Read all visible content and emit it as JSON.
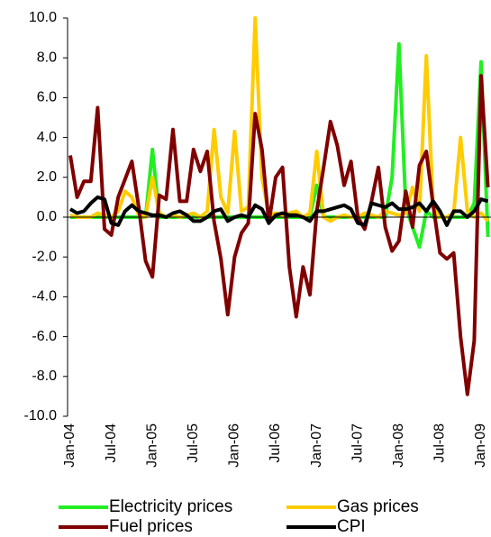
{
  "chart_data": {
    "type": "line",
    "categories": [
      "Jan-04",
      null,
      null,
      null,
      null,
      null,
      "Jul-04",
      null,
      null,
      null,
      null,
      null,
      "Jan-05",
      null,
      null,
      null,
      null,
      null,
      "Jul-05",
      null,
      null,
      null,
      null,
      null,
      "Jan-06",
      null,
      null,
      null,
      null,
      null,
      "Jul-06",
      null,
      null,
      null,
      null,
      null,
      "Jan-07",
      null,
      null,
      null,
      null,
      null,
      "Jul-07",
      null,
      null,
      null,
      null,
      null,
      "Jan-08",
      null,
      null,
      null,
      null,
      null,
      "Jul-08",
      null,
      null,
      null,
      null,
      null,
      "Jan-09",
      null
    ],
    "series": [
      {
        "name": "Electricity prices",
        "color": "#22ee22",
        "values": [
          0,
          0,
          0,
          0,
          0,
          0,
          0,
          0,
          0,
          0,
          0,
          0,
          3.4,
          0,
          0,
          0,
          0,
          0,
          0,
          0,
          0,
          0,
          0,
          0,
          0,
          0,
          0,
          0,
          0,
          0,
          0,
          0,
          0,
          0,
          0,
          0,
          1.6,
          0,
          0,
          0,
          0,
          0,
          0,
          0,
          0,
          0,
          0,
          2.0,
          8.7,
          0.5,
          -0.5,
          -1.5,
          0.3,
          0,
          0,
          0,
          0,
          0,
          0,
          0.7,
          7.8,
          -1.0
        ]
      },
      {
        "name": "Gas prices",
        "color": "#ffcc00",
        "values": [
          0.1,
          0,
          0,
          0,
          0.2,
          0.1,
          0,
          0.3,
          1.3,
          1.0,
          0.1,
          0,
          2.0,
          0.2,
          0,
          0.1,
          0,
          0.1,
          0.2,
          0,
          0.3,
          4.4,
          1.0,
          0.2,
          4.3,
          0.3,
          0.5,
          10.0,
          2.0,
          0.1,
          0.2,
          0.1,
          0.2,
          0.3,
          0,
          0.2,
          3.3,
          0,
          -0.2,
          0,
          0.1,
          0,
          0,
          0.2,
          0.1,
          0,
          0.3,
          0.2,
          0.1,
          0.2,
          1.5,
          0.3,
          8.1,
          0.5,
          0,
          0,
          0.2,
          4.0,
          0.3,
          0,
          0.2,
          -0.2
        ]
      },
      {
        "name": "Fuel prices",
        "color": "#800000",
        "values": [
          3.1,
          1.0,
          1.8,
          1.8,
          5.5,
          -0.6,
          -0.9,
          1.0,
          1.9,
          2.8,
          0.5,
          -2.2,
          -3.0,
          1.1,
          0.9,
          4.4,
          0.8,
          0.8,
          3.4,
          2.3,
          3.3,
          -0.2,
          -2.1,
          -4.9,
          -2.0,
          -0.8,
          -0.3,
          5.2,
          3.4,
          -0.3,
          2.0,
          2.5,
          -2.5,
          -5.0,
          -2.5,
          -3.9,
          0.3,
          2.5,
          4.8,
          3.6,
          1.6,
          2.8,
          0.0,
          -0.6,
          0.8,
          2.5,
          -0.5,
          -1.7,
          -1.2,
          1.3,
          -0.5,
          2.6,
          3.3,
          0.6,
          -1.8,
          -2.1,
          -1.8,
          -6.0,
          -8.9,
          -6.2,
          7.1,
          1.5
        ]
      },
      {
        "name": "CPI",
        "color": "#000000",
        "values": [
          0.4,
          0.2,
          0.3,
          0.7,
          1.0,
          0.9,
          -0.3,
          -0.4,
          0.3,
          0.6,
          0.3,
          0.2,
          0.1,
          0.1,
          0.0,
          0.2,
          0.3,
          0.1,
          -0.2,
          -0.2,
          0.0,
          0.3,
          0.4,
          -0.2,
          0.0,
          0.1,
          0.0,
          0.6,
          0.4,
          -0.3,
          0.1,
          0.2,
          0.1,
          0.1,
          0.0,
          -0.2,
          0.3,
          0.3,
          0.4,
          0.5,
          0.6,
          0.4,
          -0.3,
          -0.4,
          0.7,
          0.6,
          0.5,
          0.7,
          0.4,
          0.4,
          0.5,
          0.7,
          0.3,
          0.8,
          0.3,
          -0.4,
          0.3,
          0.3,
          0.0,
          0.3,
          0.9,
          0.8
        ]
      }
    ],
    "ylim": [
      -10,
      10
    ],
    "yticks": [
      {
        "value": -10,
        "label": "-10.0"
      },
      {
        "value": -8,
        "label": "-8.0"
      },
      {
        "value": -6,
        "label": "-6.0"
      },
      {
        "value": -4,
        "label": "-4.0"
      },
      {
        "value": -2,
        "label": "-2.0"
      },
      {
        "value": 0,
        "label": "0.0"
      },
      {
        "value": 2,
        "label": "2.0"
      },
      {
        "value": 4,
        "label": "4.0"
      },
      {
        "value": 6,
        "label": "6.0"
      },
      {
        "value": 8,
        "label": "8.0"
      },
      {
        "value": 10,
        "label": "10.0"
      }
    ],
    "grid": false
  }
}
